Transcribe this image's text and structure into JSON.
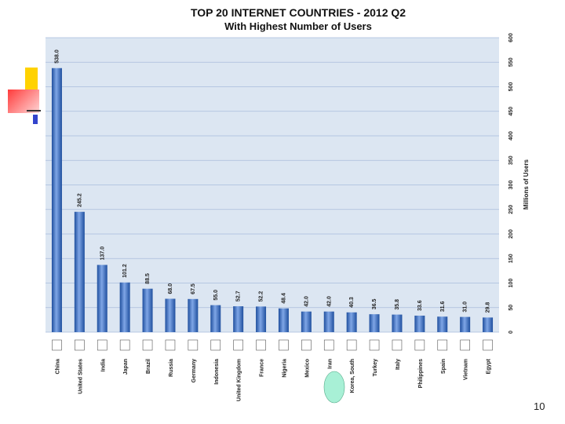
{
  "chart_data": {
    "type": "bar",
    "title": "TOP 20 INTERNET COUNTRIES  - 2012 Q2",
    "subtitle": "With Highest Number of Users",
    "ylabel": "Millions of Users",
    "xlabel": "",
    "ylim": [
      0,
      600
    ],
    "yticks": [
      0,
      50,
      100,
      150,
      200,
      250,
      300,
      350,
      400,
      450,
      500,
      550,
      600
    ],
    "grid": true,
    "y_axis_position": "right",
    "categories": [
      "China",
      "United States",
      "India",
      "Japan",
      "Brazil",
      "Russia",
      "Germany",
      "Indonesia",
      "United Kingdom",
      "France",
      "Nigeria",
      "Mexico",
      "Iran",
      "Korea, South",
      "Turkey",
      "Italy",
      "Philippines",
      "Spain",
      "Vietnam",
      "Egypt"
    ],
    "values": [
      538.0,
      245.2,
      137.0,
      101.2,
      88.5,
      68.0,
      67.5,
      55.0,
      52.7,
      52.2,
      48.4,
      42.0,
      42.0,
      40.3,
      36.5,
      35.8,
      33.6,
      31.6,
      31.0,
      29.8
    ],
    "value_labels": [
      "538.0",
      "245.2",
      "137.0",
      "101.2",
      "88.5",
      "68.0",
      "67.5",
      "55.0",
      "52.7",
      "52.2",
      "48.4",
      "42.0",
      "42.0",
      "40.3",
      "36.5",
      "35.8",
      "33.6",
      "31.6",
      "31.0",
      "29.8"
    ],
    "colors": {
      "bar": "#3a6fc4",
      "bar_dark": "#1f4f9e",
      "bar_light": "#7fa6e6",
      "plot_bg": "#dce6f2",
      "grid": "#a9bcdc"
    }
  },
  "page": {
    "slide_number": "10"
  },
  "decor": {
    "highlight_color": "#a8f0d6"
  }
}
